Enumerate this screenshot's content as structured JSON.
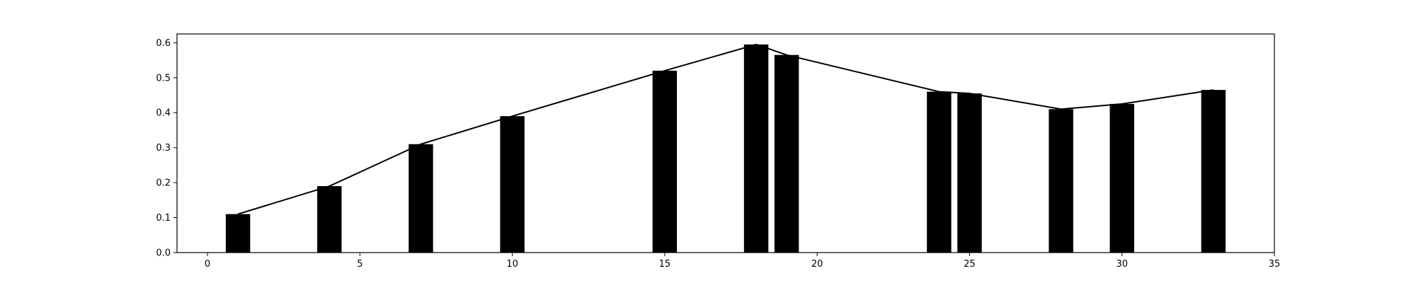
{
  "chart_data": {
    "type": "bar",
    "title": "",
    "xlabel": "",
    "ylabel": "",
    "xlim": [
      -1,
      35
    ],
    "ylim": [
      0,
      0.625
    ],
    "grid": false,
    "legend": "none",
    "x_ticks": [
      0,
      5,
      10,
      15,
      20,
      25,
      30,
      35
    ],
    "y_ticks": [
      0.0,
      0.1,
      0.2,
      0.3,
      0.4,
      0.5,
      0.6
    ],
    "x_tick_labels": [
      "0",
      "5",
      "10",
      "15",
      "20",
      "25",
      "30",
      "35"
    ],
    "y_tick_labels": [
      "0.0",
      "0.1",
      "0.2",
      "0.3",
      "0.4",
      "0.5",
      "0.6"
    ],
    "bar_width": 0.8,
    "series": [
      {
        "type": "bar",
        "x": [
          1,
          4,
          7,
          10,
          15,
          18,
          19,
          24,
          25,
          28,
          30,
          33
        ],
        "values": [
          0.11,
          0.19,
          0.31,
          0.39,
          0.52,
          0.595,
          0.565,
          0.46,
          0.455,
          0.41,
          0.425,
          0.465
        ],
        "color": "#000000"
      },
      {
        "type": "line",
        "x": [
          1,
          4,
          7,
          10,
          15,
          18,
          19,
          24,
          25,
          28,
          30,
          33
        ],
        "values": [
          0.11,
          0.19,
          0.31,
          0.39,
          0.52,
          0.595,
          0.565,
          0.46,
          0.455,
          0.41,
          0.425,
          0.465
        ],
        "color": "#000000"
      }
    ]
  }
}
